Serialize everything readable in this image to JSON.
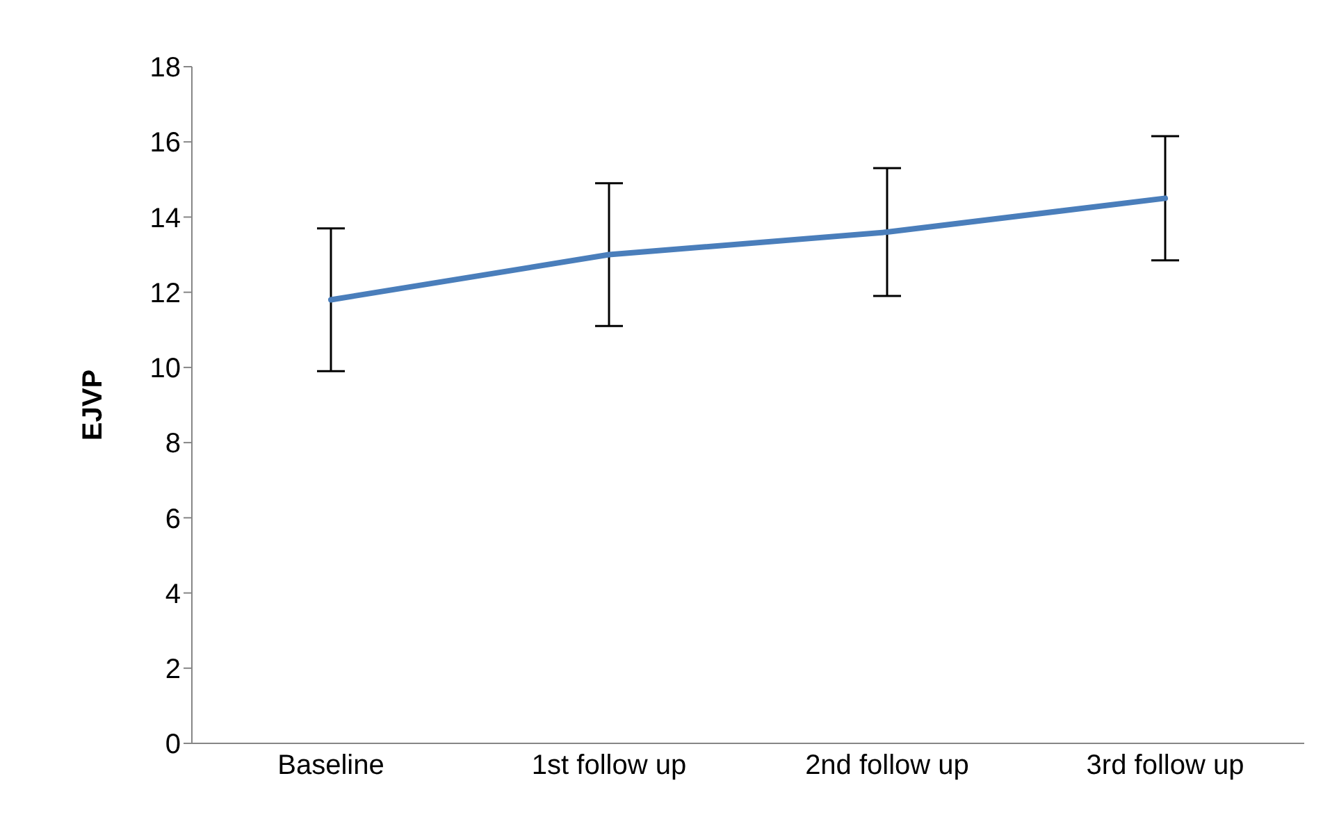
{
  "chart_data": {
    "type": "line",
    "ylabel": "EJVP",
    "categories": [
      "Baseline",
      "1st follow up",
      "2nd follow up",
      "3rd follow up"
    ],
    "series": [
      {
        "color": "#4a7ebb",
        "values": [
          11.8,
          13.0,
          13.6,
          14.5
        ],
        "errors": [
          1.9,
          1.9,
          1.7,
          1.65
        ]
      }
    ],
    "ylim": [
      0,
      18
    ],
    "yticks": [
      0,
      2,
      4,
      6,
      8,
      10,
      12,
      14,
      16,
      18
    ],
    "grid": false,
    "legend": false,
    "marker": "none",
    "line_style": "solid"
  }
}
